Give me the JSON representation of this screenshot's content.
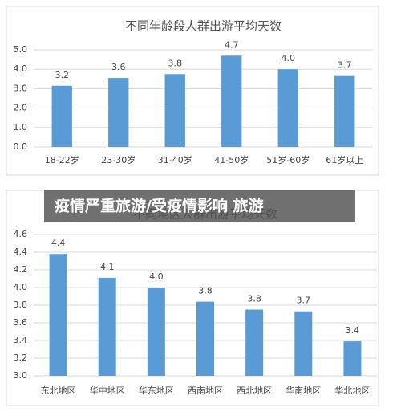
{
  "banner": "疫情严重旅游/受疫情影响 旅游",
  "chart_data": [
    {
      "type": "bar",
      "title": "不同年龄段人群出游平均天数",
      "categories": [
        "18-22岁",
        "23-30岁",
        "31-40岁",
        "41-50岁",
        "51岁-60岁",
        "61岁以上"
      ],
      "values": [
        3.15,
        3.55,
        3.75,
        4.7,
        4.0,
        3.65
      ],
      "value_labels": [
        "3.2",
        "3.6",
        "3.8",
        "4.7",
        "4.0",
        "3.7"
      ],
      "color": "#5b9bd5",
      "ylim": [
        0,
        5
      ],
      "yticks": [
        {
          "value": 0,
          "label": "0.0"
        },
        {
          "value": 1,
          "label": "1.0"
        },
        {
          "value": 2,
          "label": "2.0"
        },
        {
          "value": 3,
          "label": "3.0"
        },
        {
          "value": 4,
          "label": "4.0"
        },
        {
          "value": 5,
          "label": "5.0"
        }
      ],
      "grid": true
    },
    {
      "type": "bar",
      "title": "不同地区人群出游平均天数",
      "categories": [
        "东北地区",
        "华中地区",
        "华东地区",
        "西南地区",
        "西北地区",
        "华南地区",
        "华北地区"
      ],
      "values": [
        4.38,
        4.11,
        4.0,
        3.84,
        3.75,
        3.73,
        3.39
      ],
      "value_labels": [
        "4.4",
        "4.1",
        "4.0",
        "3.8",
        "3.8",
        "3.7",
        "3.4"
      ],
      "color": "#5b9bd5",
      "ylim": [
        3,
        4.6
      ],
      "yticks": [
        {
          "value": 3,
          "label": "3.0"
        },
        3.2,
        3.4,
        3.6,
        3.8,
        {
          "value": 4,
          "label": "4.0"
        },
        4.2,
        4.4,
        4.6
      ],
      "grid": true
    }
  ]
}
